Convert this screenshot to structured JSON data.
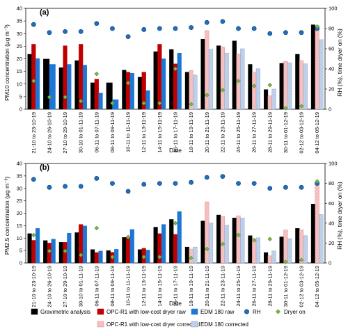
{
  "colors": {
    "grav": "#000000",
    "opc_raw": "#c00000",
    "edm_raw": "#1f77d4",
    "rh": "#1f6fbf",
    "dryer": "#7ab648",
    "opc_corr": "#f4b6b6",
    "edm_corr": "#b4c8e6"
  },
  "legend": [
    {
      "key": "grav",
      "label": "Gravimetric analysis",
      "symbol": "bar"
    },
    {
      "key": "opc_raw",
      "label": "OPC-R1 with low-cost dryer raw",
      "symbol": "bar"
    },
    {
      "key": "edm_raw",
      "label": "EDM 180 raw",
      "symbol": "bar"
    },
    {
      "key": "rh",
      "label": "RH",
      "symbol": "circle"
    },
    {
      "key": "dryer",
      "label": "Dryer on",
      "symbol": "diamond"
    },
    {
      "key": "opc_corr",
      "label": "OPC-R1 with low-cost dryer corrected",
      "symbol": "hatched-bar"
    },
    {
      "key": "edm_corr",
      "label": "EDM 180 corrected",
      "symbol": "hatched-bar"
    }
  ],
  "chart_data": [
    {
      "type": "bar",
      "panel_label": "(a)",
      "xlabel": "Date",
      "ylabel": "PM10 concentration (μg m⁻³)",
      "ylabel_right": "RH (%), time dryer on (%)",
      "ylim": [
        0,
        40
      ],
      "yticks": [
        0,
        5,
        10,
        15,
        20,
        25,
        30,
        35,
        40
      ],
      "ylim_right": [
        0,
        100
      ],
      "yticks_right": [
        0,
        20,
        40,
        60,
        80,
        100
      ],
      "categories": [
        "21-10 to 23-10-19",
        "24-10 to 26-10-19",
        "27-10 to 29-10-19",
        "30-10 to 01-11-19",
        "06-11 to 07-11-19",
        "08-11 to 09-11-19",
        "10-11 to 11-11-19",
        "12-11 to 13-11-19",
        "14-11 to 15-11-19",
        "16-11 to 17-11-19",
        "18-11 to 19-11-19",
        "20-11 to 21-11-19",
        "22-11 to 23-11-19",
        "24-11 to 25-11-19",
        "26-11 to 27-11-19",
        "28-11 to 29-11-19",
        "30-11 to 01-12-19",
        "02-12 to 03-12-19",
        "04-12 to 05-12-19"
      ],
      "series": [
        {
          "name": "Gravimetric analysis",
          "key": "grav",
          "values": [
            21.8,
            19.9,
            16.5,
            19.3,
            10.5,
            10.5,
            15.5,
            12.7,
            22.8,
            23.7,
            14.7,
            27.8,
            25.2,
            27.1,
            17.8,
            7.8,
            18.2,
            21.8,
            33.5
          ]
        },
        {
          "name": "OPC-R1 with low-cost dryer raw",
          "key": "opc_raw",
          "values": [
            25.8,
            0,
            25.2,
            25.8,
            11.9,
            0,
            14.7,
            14.7,
            25.8,
            18.0,
            0,
            0,
            0,
            0,
            0,
            0,
            0,
            0,
            0
          ]
        },
        {
          "name": "EDM 180 raw",
          "key": "edm_raw",
          "values": [
            20.1,
            17.8,
            17.8,
            17.5,
            6.4,
            3.8,
            14.3,
            7.4,
            20.0,
            22.3,
            0,
            0,
            0,
            0,
            0,
            0,
            0,
            0,
            0
          ]
        },
        {
          "name": "OPC-R1 with low-cost dryer corrected",
          "key": "opc_corr",
          "values": [
            0,
            0,
            0,
            0,
            0,
            0,
            0,
            0,
            0,
            0,
            15.4,
            31.2,
            24.7,
            21.8,
            14.7,
            5.3,
            19.0,
            19.3,
            33.2
          ]
        },
        {
          "name": "EDM 180 corrected",
          "key": "edm_corr",
          "values": [
            0,
            0,
            0,
            0,
            0,
            0,
            0,
            0,
            0,
            0,
            13.6,
            23.8,
            22.3,
            24.0,
            16.1,
            8.0,
            18.4,
            18.0,
            27.6
          ]
        }
      ],
      "rh": [
        84,
        76,
        77,
        77,
        85,
        80,
        72,
        79,
        80,
        80,
        81,
        86,
        87,
        80,
        80,
        75,
        76,
        76,
        80
      ],
      "dryer_on": [
        28,
        12,
        12,
        8,
        35,
        6,
        26,
        6,
        6,
        40,
        5,
        14,
        19,
        28,
        23,
        24,
        1,
        3,
        82
      ]
    },
    {
      "type": "bar",
      "panel_label": "(b)",
      "xlabel": "Date",
      "ylabel": "PM2.5 concentration (μg m⁻³)",
      "ylabel_right": "RH (%), time dryer on (%)",
      "ylim": [
        0,
        40
      ],
      "yticks": [
        0,
        5,
        10,
        15,
        20,
        25,
        30,
        35,
        40
      ],
      "ylim_right": [
        0,
        100
      ],
      "yticks_right": [
        0,
        20,
        40,
        60,
        80,
        100
      ],
      "categories": [
        "21-10 to 23-10-19",
        "24-10 to 26-10-19",
        "27-10 to 29-10-19",
        "30-10 to 01-11-19",
        "06-11 to 07-11-19",
        "08-11 to 09-11-19",
        "10-11 to 11-11-19",
        "12-11 to 13-11-19",
        "14-11 to 15-11-19",
        "16-11 to 17-11-19",
        "18-11 to 19-11-19",
        "20-11 to 21-11-19",
        "22-11 to 23-11-19",
        "24-11 to 25-11-19",
        "26-11 to 27-11-19",
        "28-11 to 29-11-19",
        "30-11 to 01-12-19",
        "02-12 to 03-12-19",
        "04-12 to 05-12-19"
      ],
      "series": [
        {
          "name": "Gravimetric analysis",
          "key": "grav",
          "values": [
            11.8,
            9.0,
            8.3,
            12.2,
            5.4,
            5.0,
            10.3,
            5.4,
            14.4,
            17.5,
            6.4,
            16.9,
            19.3,
            18.1,
            11.0,
            4.2,
            10.5,
            13.9,
            23.7
          ]
        },
        {
          "name": "OPC-R1 with low-cost dryer raw",
          "key": "opc_raw",
          "values": [
            9.1,
            8.0,
            8.3,
            15.5,
            4.2,
            4.3,
            10.6,
            5.9,
            11.8,
            11.5,
            0,
            0,
            0,
            0,
            0,
            0,
            0,
            0,
            0
          ]
        },
        {
          "name": "EDM 180 raw",
          "key": "edm_raw",
          "values": [
            13.9,
            9.6,
            12.0,
            14.9,
            4.8,
            5.5,
            13.5,
            5.2,
            15.5,
            20.7,
            0,
            0,
            0,
            0,
            0,
            0,
            0,
            0,
            0
          ]
        },
        {
          "name": "OPC-R1 with low-cost dryer corrected",
          "key": "opc_corr",
          "values": [
            0,
            0,
            0,
            0,
            0,
            0,
            0,
            0,
            0,
            0,
            5.6,
            24.6,
            18.7,
            19.0,
            9.4,
            2.9,
            13.3,
            13.3,
            32.2
          ]
        },
        {
          "name": "EDM 180 corrected",
          "key": "edm_corr",
          "values": [
            0,
            0,
            0,
            0,
            0,
            0,
            0,
            0,
            0,
            0,
            6.4,
            16.1,
            15.2,
            18.1,
            10.1,
            4.8,
            9.8,
            11.0,
            19.5
          ]
        }
      ],
      "rh": [
        84,
        76,
        77,
        77,
        85,
        80,
        72,
        79,
        80,
        80,
        81,
        86,
        87,
        80,
        80,
        75,
        76,
        76,
        80
      ],
      "dryer_on": [
        28,
        12,
        12,
        8,
        35,
        6,
        26,
        6,
        6,
        40,
        5,
        14,
        19,
        28,
        23,
        24,
        1,
        3,
        82
      ]
    }
  ]
}
